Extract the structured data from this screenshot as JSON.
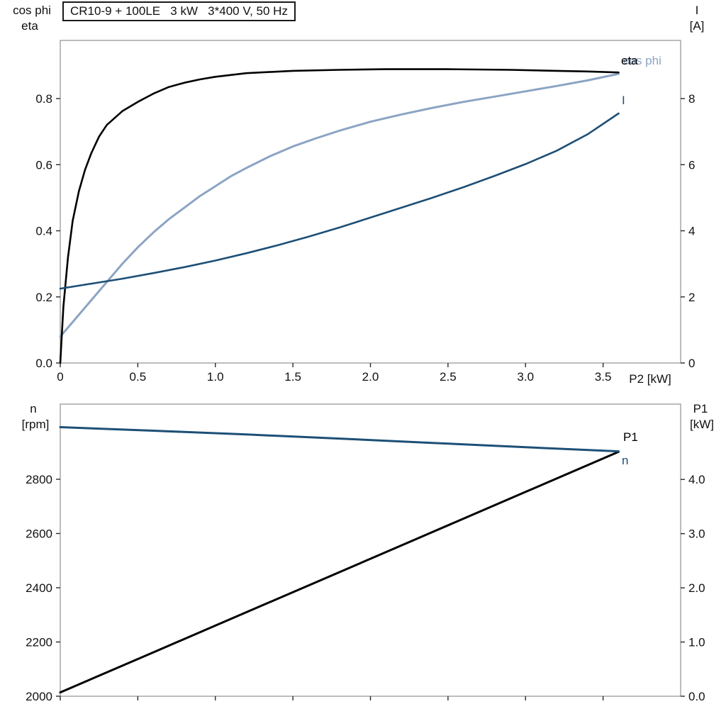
{
  "title_box": {
    "text": "CR10-9 + 100LE   3 kW   3*400 V, 50 Hz"
  },
  "colors": {
    "eta_and_p1_curve": "#000000",
    "current_and_speed_curve": "#1d4f76",
    "cos_phi_curve": "#8ca4c4",
    "frame": "#8f8f8f",
    "tick": "#2b2b2b"
  },
  "top_chart_labels": {
    "left_axis_line1": "cos phi",
    "left_axis_line2": "eta",
    "right_axis_line1": "I",
    "right_axis_line2": "[A]",
    "x_axis": "P2 [kW]",
    "curve_eta": "eta",
    "curve_cosphi": "cos phi",
    "curve_current": "I"
  },
  "bottom_chart_labels": {
    "left_axis_line1": "n",
    "left_axis_line2": "[rpm]",
    "right_axis_line1": "P1",
    "right_axis_line2": "[kW]",
    "curve_p1": "P1",
    "curve_n": "n"
  },
  "chart_data": [
    {
      "type": "line",
      "title": "CR10-9 + 100LE   3 kW   3*400 V, 50 Hz",
      "grid": false,
      "legend_position": "labels-at-line-ends",
      "x_axis": {
        "label": "P2 [kW]",
        "range": [
          0,
          4.0
        ],
        "ticks": [
          {
            "v": 0,
            "label": "0"
          },
          {
            "v": 0.5,
            "label": "0.5"
          },
          {
            "v": 1.0,
            "label": "1.0"
          },
          {
            "v": 1.5,
            "label": "1.5"
          },
          {
            "v": 2.0,
            "label": "2.0"
          },
          {
            "v": 2.5,
            "label": "2.5"
          },
          {
            "v": 3.0,
            "label": "3.0"
          },
          {
            "v": 3.5,
            "label": "3.5"
          }
        ]
      },
      "left_axis": {
        "label": "cos phi / eta",
        "range": [
          0,
          0.976
        ],
        "ticks": [
          {
            "v": 0.0,
            "label": "0.0"
          },
          {
            "v": 0.2,
            "label": "0.2"
          },
          {
            "v": 0.4,
            "label": "0.4"
          },
          {
            "v": 0.6,
            "label": "0.6"
          },
          {
            "v": 0.8,
            "label": "0.8"
          }
        ]
      },
      "right_axis": {
        "label": "I [A]",
        "range": [
          0,
          9.76
        ],
        "ticks": [
          {
            "v": 0,
            "label": "0"
          },
          {
            "v": 2,
            "label": "2"
          },
          {
            "v": 4,
            "label": "4"
          },
          {
            "v": 6,
            "label": "6"
          },
          {
            "v": 8,
            "label": "8"
          }
        ]
      },
      "series": [
        {
          "name": "cos phi",
          "axis": "left",
          "color": "#8ca4c4",
          "width": 3,
          "points": [
            [
              0,
              0.08
            ],
            [
              0.1,
              0.135
            ],
            [
              0.2,
              0.19
            ],
            [
              0.3,
              0.245
            ],
            [
              0.4,
              0.3
            ],
            [
              0.5,
              0.35
            ],
            [
              0.6,
              0.395
            ],
            [
              0.7,
              0.435
            ],
            [
              0.8,
              0.47
            ],
            [
              0.9,
              0.505
            ],
            [
              1.0,
              0.535
            ],
            [
              1.1,
              0.565
            ],
            [
              1.2,
              0.59
            ],
            [
              1.35,
              0.625
            ],
            [
              1.5,
              0.655
            ],
            [
              1.65,
              0.68
            ],
            [
              1.8,
              0.703
            ],
            [
              2.0,
              0.73
            ],
            [
              2.2,
              0.752
            ],
            [
              2.4,
              0.772
            ],
            [
              2.6,
              0.79
            ],
            [
              2.8,
              0.806
            ],
            [
              3.0,
              0.822
            ],
            [
              3.2,
              0.838
            ],
            [
              3.4,
              0.855
            ],
            [
              3.6,
              0.875
            ]
          ]
        },
        {
          "name": "eta",
          "axis": "left",
          "color": "#000000",
          "width": 2.6,
          "points": [
            [
              0,
              0
            ],
            [
              0.02,
              0.17
            ],
            [
              0.05,
              0.32
            ],
            [
              0.08,
              0.43
            ],
            [
              0.12,
              0.52
            ],
            [
              0.16,
              0.585
            ],
            [
              0.2,
              0.635
            ],
            [
              0.25,
              0.685
            ],
            [
              0.3,
              0.72
            ],
            [
              0.4,
              0.762
            ],
            [
              0.5,
              0.79
            ],
            [
              0.6,
              0.815
            ],
            [
              0.7,
              0.835
            ],
            [
              0.8,
              0.848
            ],
            [
              0.9,
              0.858
            ],
            [
              1.0,
              0.866
            ],
            [
              1.2,
              0.877
            ],
            [
              1.5,
              0.884
            ],
            [
              1.8,
              0.887
            ],
            [
              2.1,
              0.889
            ],
            [
              2.5,
              0.889
            ],
            [
              2.9,
              0.887
            ],
            [
              3.2,
              0.884
            ],
            [
              3.4,
              0.882
            ],
            [
              3.6,
              0.879
            ]
          ]
        },
        {
          "name": "I",
          "axis": "right",
          "color": "#1d4f76",
          "width": 2.6,
          "points": [
            [
              0,
              2.25
            ],
            [
              0.2,
              2.4
            ],
            [
              0.4,
              2.55
            ],
            [
              0.6,
              2.72
            ],
            [
              0.8,
              2.9
            ],
            [
              1.0,
              3.1
            ],
            [
              1.2,
              3.32
            ],
            [
              1.4,
              3.56
            ],
            [
              1.6,
              3.82
            ],
            [
              1.8,
              4.1
            ],
            [
              2.0,
              4.4
            ],
            [
              2.2,
              4.7
            ],
            [
              2.4,
              5.0
            ],
            [
              2.6,
              5.32
            ],
            [
              2.8,
              5.66
            ],
            [
              3.0,
              6.02
            ],
            [
              3.2,
              6.42
            ],
            [
              3.4,
              6.92
            ],
            [
              3.6,
              7.55
            ]
          ]
        }
      ]
    },
    {
      "type": "line",
      "title": "",
      "grid": false,
      "legend_position": "labels-at-line-ends",
      "x_axis": {
        "label": "",
        "range": [
          0,
          4.0
        ],
        "ticks": [
          {
            "v": 0,
            "label": ""
          },
          {
            "v": 0.5,
            "label": ""
          },
          {
            "v": 1.0,
            "label": ""
          },
          {
            "v": 1.5,
            "label": ""
          },
          {
            "v": 2.0,
            "label": ""
          },
          {
            "v": 2.5,
            "label": ""
          },
          {
            "v": 3.0,
            "label": ""
          },
          {
            "v": 3.5,
            "label": ""
          }
        ]
      },
      "left_axis": {
        "label": "n [rpm]",
        "range": [
          2000,
          3077
        ],
        "ticks": [
          {
            "v": 2000,
            "label": "2000"
          },
          {
            "v": 2200,
            "label": "2200"
          },
          {
            "v": 2400,
            "label": "2400"
          },
          {
            "v": 2600,
            "label": "2600"
          },
          {
            "v": 2800,
            "label": "2800"
          }
        ]
      },
      "right_axis": {
        "label": "P1 [kW]",
        "range": [
          0,
          5.39
        ],
        "ticks": [
          {
            "v": 0,
            "label": "0.0"
          },
          {
            "v": 1,
            "label": "1.0"
          },
          {
            "v": 2,
            "label": "2.0"
          },
          {
            "v": 3,
            "label": "3.0"
          },
          {
            "v": 4,
            "label": "4.0"
          }
        ]
      },
      "series": [
        {
          "name": "P1",
          "axis": "right",
          "color": "#000000",
          "width": 3,
          "points": [
            [
              0,
              0.07
            ],
            [
              0.6,
              0.81
            ],
            [
              1.2,
              1.55
            ],
            [
              1.8,
              2.29
            ],
            [
              2.4,
              3.03
            ],
            [
              3.0,
              3.77
            ],
            [
              3.6,
              4.51
            ]
          ]
        },
        {
          "name": "n",
          "axis": "left",
          "color": "#1d4f76",
          "width": 3,
          "points": [
            [
              0,
              2992
            ],
            [
              0.6,
              2979
            ],
            [
              1.2,
              2965
            ],
            [
              1.8,
              2950
            ],
            [
              2.4,
              2934
            ],
            [
              3.0,
              2918
            ],
            [
              3.6,
              2903
            ]
          ]
        }
      ]
    }
  ]
}
